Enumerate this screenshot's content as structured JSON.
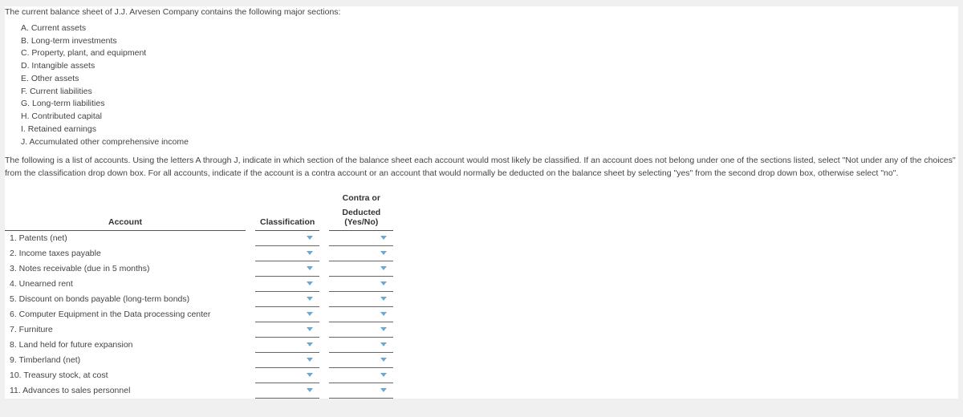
{
  "intro": "The current balance sheet of J.J. Arvesen Company contains the following major sections:",
  "sections": [
    "A. Current assets",
    "B. Long-term investments",
    "C. Property, plant, and equipment",
    "D. Intangible assets",
    "E. Other assets",
    "F. Current liabilities",
    "G. Long-term liabilities",
    "H. Contributed capital",
    "I. Retained earnings",
    "J. Accumulated other comprehensive income"
  ],
  "instructions": "The following is a list of accounts. Using the letters A through J, indicate in which section of the balance sheet each account would most likely be classified. If an account does not belong under one of the sections listed, select \"Not under any of the choices\" from the classification drop down box. For all accounts, indicate if the account is a contra account or an account that would normally be deducted on the balance sheet by selecting \"yes\" from the second drop down box, otherwise select \"no\".",
  "headers": {
    "account": "Account",
    "classification": "Classification",
    "contra_line1": "Contra or",
    "contra_line2": "Deducted (Yes/No)"
  },
  "rows": [
    {
      "label": "1. Patents (net)"
    },
    {
      "label": "2. Income taxes payable"
    },
    {
      "label": "3. Notes receivable (due in 5 months)"
    },
    {
      "label": "4. Unearned rent"
    },
    {
      "label": "5. Discount on bonds payable (long-term bonds)"
    },
    {
      "label": "6. Computer Equipment in the Data processing center"
    },
    {
      "label": "7. Furniture"
    },
    {
      "label": "8. Land held for future expansion"
    },
    {
      "label": "9. Timberland (net)"
    },
    {
      "label": "10. Treasury stock, at cost"
    },
    {
      "label": "11. Advances to sales personnel"
    }
  ],
  "colors": {
    "caret": "#6aa9d6",
    "underline": "#666666",
    "text": "#444444"
  }
}
